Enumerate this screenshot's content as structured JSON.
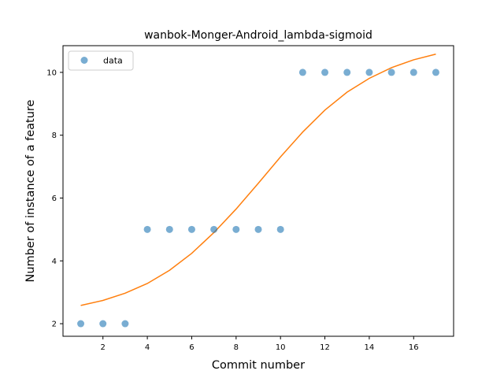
{
  "chart_data": {
    "type": "scatter",
    "title": "wanbok-Monger-Android_lambda-sigmoid",
    "xlabel": "Commit number",
    "ylabel": "Number of instance of a feature",
    "xlim": [
      0.2,
      17.8
    ],
    "ylim": [
      1.6,
      10.85
    ],
    "x_ticks": [
      2,
      4,
      6,
      8,
      10,
      12,
      14,
      16
    ],
    "y_ticks": [
      2,
      4,
      6,
      8,
      10
    ],
    "grid": false,
    "legend_position": "upper-left",
    "series": [
      {
        "name": "data",
        "kind": "scatter",
        "color": "#1f77b4",
        "x": [
          1,
          2,
          3,
          4,
          5,
          6,
          7,
          8,
          9,
          10,
          11,
          12,
          13,
          14,
          15,
          16,
          17
        ],
        "y": [
          2,
          2,
          2,
          5,
          5,
          5,
          5,
          5,
          5,
          5,
          10,
          10,
          10,
          10,
          10,
          10,
          10
        ]
      },
      {
        "kind": "line",
        "color": "#ff7f0e",
        "x": [
          1,
          2,
          3,
          4,
          5,
          6,
          7,
          8,
          9,
          10,
          11,
          12,
          13,
          14,
          15,
          16,
          17
        ],
        "y": [
          2.58,
          2.74,
          2.97,
          3.28,
          3.7,
          4.24,
          4.9,
          5.65,
          6.47,
          7.31,
          8.1,
          8.8,
          9.37,
          9.81,
          10.15,
          10.4,
          10.58
        ]
      }
    ]
  }
}
